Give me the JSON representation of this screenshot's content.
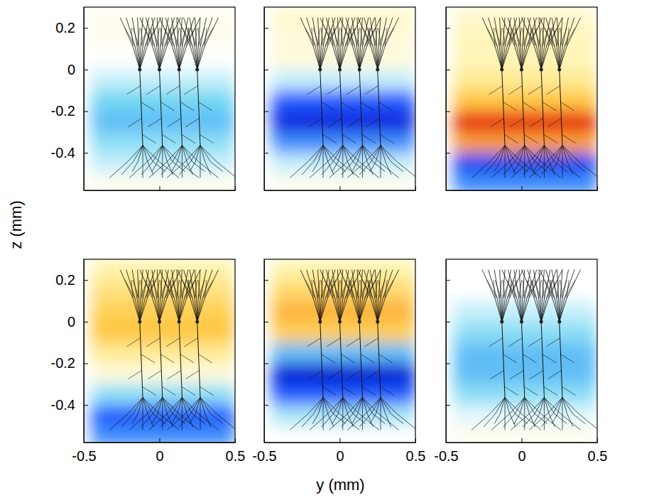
{
  "chart_data": {
    "type": "heatmap",
    "xlabel": "y (mm)",
    "ylabel": "z (mm)",
    "xlim": [
      -0.5,
      0.5
    ],
    "ylim": [
      -0.58,
      0.3
    ],
    "xticks": [
      -0.5,
      0,
      0.5
    ],
    "yticks": [
      -0.4,
      -0.2,
      0,
      0.2
    ],
    "clim": [
      -1,
      1
    ],
    "cell_y": [
      -0.45,
      0.5
    ],
    "cell_z": [
      0.25,
      0.15,
      0.05,
      -0.05,
      -0.15,
      -0.25,
      -0.35,
      -0.45,
      -0.55
    ],
    "panels": [
      {
        "cells": [
          0.05,
          0.05,
          0,
          -0.1,
          -0.25,
          -0.3,
          -0.2,
          -0.1,
          0.05
        ]
      },
      {
        "cells": [
          0.15,
          0.1,
          0.1,
          -0.1,
          -0.5,
          -0.8,
          -0.4,
          -0.1,
          0.05
        ]
      },
      {
        "cells": [
          0.15,
          0.2,
          0.2,
          0.3,
          0.5,
          0.9,
          0.6,
          -0.6,
          -0.4
        ]
      },
      {
        "cells": [
          0.25,
          0.35,
          0.45,
          0.5,
          0.3,
          0.1,
          -0.2,
          -0.5,
          -0.4
        ]
      },
      {
        "cells": [
          0.25,
          0.4,
          0.55,
          0.45,
          -0.3,
          -0.9,
          -0.5,
          -0.15,
          0
        ]
      },
      {
        "cells": [
          0,
          0,
          -0.1,
          -0.2,
          -0.3,
          -0.3,
          -0.2,
          -0.05,
          0.05
        ]
      }
    ],
    "neurons": {
      "soma_y": [
        -0.13,
        0,
        0.13,
        0.25
      ],
      "soma_z": 0,
      "dendrite_top": 0.25,
      "dendrite_bottom": -0.52
    }
  }
}
